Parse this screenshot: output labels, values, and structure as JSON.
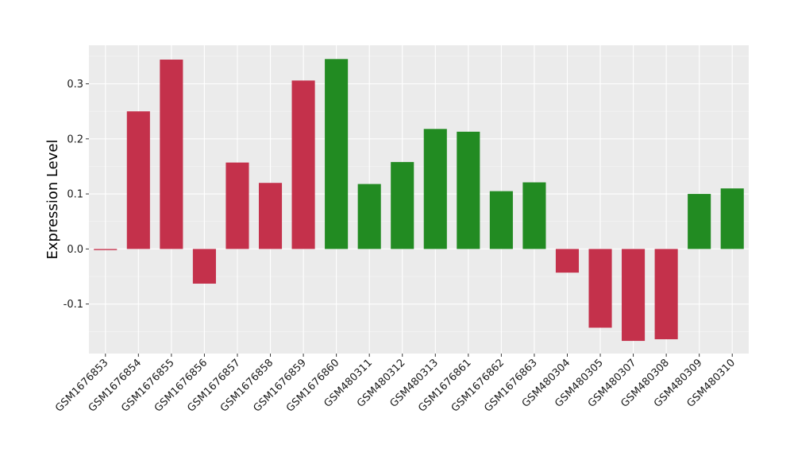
{
  "chart_data": {
    "type": "bar",
    "title": "",
    "xlabel": "",
    "ylabel": "Expression Level",
    "ylim": [
      -0.19,
      0.37
    ],
    "yticks": [
      -0.1,
      0.0,
      0.1,
      0.2,
      0.3
    ],
    "ytick_labels": [
      "-0.1",
      "0.0",
      "0.1",
      "0.2",
      "0.3"
    ],
    "grid": true,
    "legend": "none",
    "colors": {
      "red": "#c4314b",
      "green": "#228b22",
      "panel": "#ebebeb"
    },
    "categories": [
      "GSM1676853",
      "GSM1676854",
      "GSM1676855",
      "GSM1676856",
      "GSM1676857",
      "GSM1676858",
      "GSM1676859",
      "GSM1676860",
      "GSM480311",
      "GSM480312",
      "GSM480313",
      "GSM1676861",
      "GSM1676862",
      "GSM1676863",
      "GSM480304",
      "GSM480305",
      "GSM480307",
      "GSM480308",
      "GSM480309",
      "GSM480310"
    ],
    "values": [
      -0.002,
      0.25,
      0.344,
      -0.063,
      0.157,
      0.12,
      0.306,
      0.345,
      0.118,
      0.158,
      0.218,
      0.213,
      0.105,
      0.121,
      -0.043,
      -0.143,
      -0.167,
      -0.164,
      0.1,
      0.11
    ],
    "bar_colors": [
      "red",
      "red",
      "red",
      "red",
      "red",
      "red",
      "red",
      "green",
      "green",
      "green",
      "green",
      "green",
      "green",
      "green",
      "red",
      "red",
      "red",
      "red",
      "green",
      "green"
    ]
  }
}
